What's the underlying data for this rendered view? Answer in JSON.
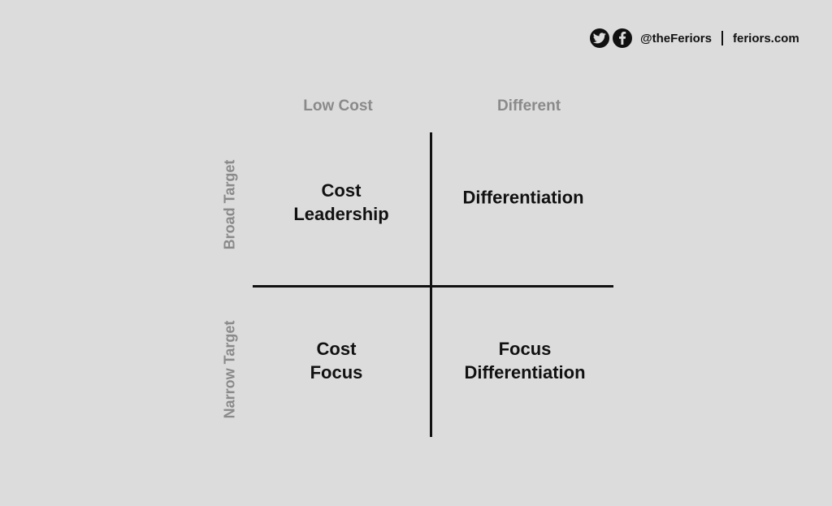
{
  "branding": {
    "icons": [
      "twitter-icon",
      "facebook-icon"
    ],
    "handle": "@theFeriors",
    "site": "feriors.com"
  },
  "matrix": {
    "columns": [
      "Low Cost",
      "Different"
    ],
    "rows": [
      "Broad Target",
      "Narrow Target"
    ],
    "quadrants": {
      "top_left": [
        "Cost",
        "Leadership"
      ],
      "top_right": [
        "Differentiation"
      ],
      "bottom_left": [
        "Cost",
        "Focus"
      ],
      "bottom_right": [
        "Focus",
        "Differentiation"
      ]
    }
  },
  "colors": {
    "background": "#dcdcdc",
    "text": "#111111",
    "header_text": "#8a8a8a"
  }
}
